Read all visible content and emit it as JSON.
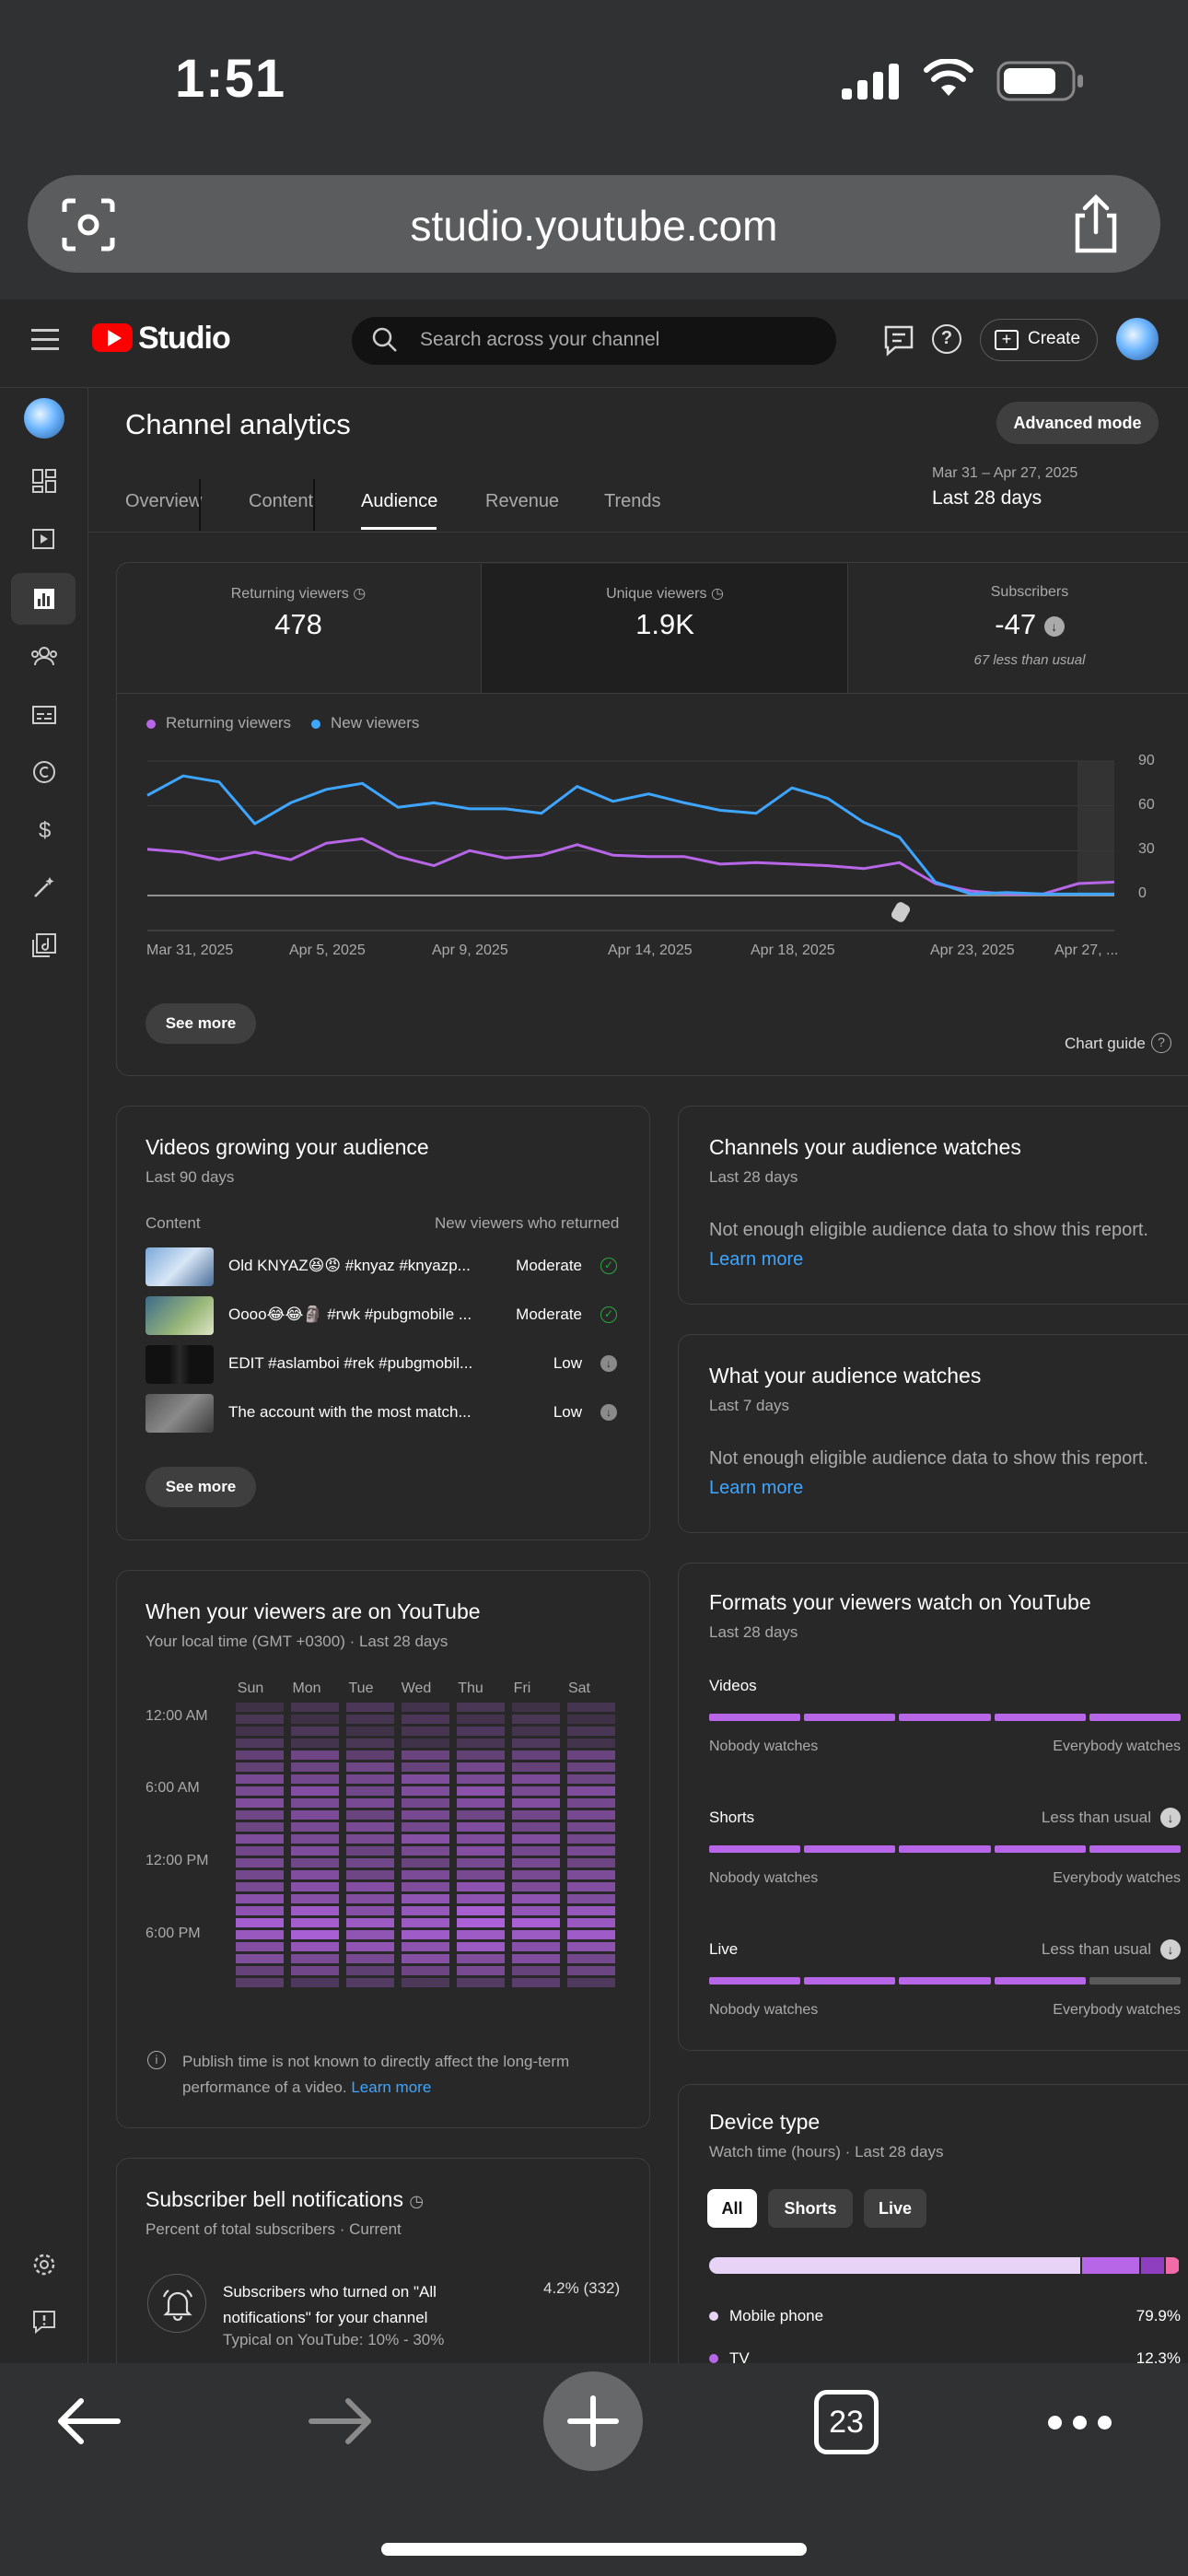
{
  "status_bar": {
    "time": "1:51"
  },
  "browser": {
    "url": "studio.youtube.com",
    "tab_count": "23"
  },
  "header": {
    "brand": "Studio",
    "search_placeholder": "Search across your channel",
    "create_label": "Create"
  },
  "page": {
    "title": "Channel analytics",
    "advanced_mode": "Advanced mode",
    "tabs": [
      "Overview",
      "Content",
      "Audience",
      "Revenue",
      "Trends"
    ],
    "active_tab": "Audience",
    "date_range_small": "Mar 31 – Apr 27, 2025",
    "date_range_main": "Last 28 days"
  },
  "metrics": [
    {
      "label": "Returning viewers",
      "value": "478"
    },
    {
      "label": "Unique viewers",
      "value": "1.9K"
    },
    {
      "label": "Subscribers",
      "value": "-47",
      "note": "67 less than usual"
    }
  ],
  "chart_data": {
    "type": "line",
    "x": [
      "Mar 31, 2025",
      "Apr 1",
      "Apr 2",
      "Apr 3",
      "Apr 4",
      "Apr 5, 2025",
      "Apr 6",
      "Apr 7",
      "Apr 8",
      "Apr 9, 2025",
      "Apr 10",
      "Apr 11",
      "Apr 12",
      "Apr 13",
      "Apr 14, 2025",
      "Apr 15",
      "Apr 16",
      "Apr 17",
      "Apr 18, 2025",
      "Apr 19",
      "Apr 20",
      "Apr 21",
      "Apr 22",
      "Apr 23, 2025",
      "Apr 24",
      "Apr 25",
      "Apr 26",
      "Apr 27, 2025"
    ],
    "x_tick_labels": [
      "Mar 31, 2025",
      "Apr 5, 2025",
      "Apr 9, 2025",
      "Apr 14, 2025",
      "Apr 18, 2025",
      "Apr 23, 2025",
      "Apr 27, ..."
    ],
    "series": [
      {
        "name": "Returning viewers",
        "color": "#b866e8",
        "values": [
          31,
          29,
          24,
          29,
          24,
          35,
          38,
          26,
          20,
          30,
          25,
          27,
          34,
          27,
          26,
          26,
          21,
          22,
          21,
          20,
          18,
          22,
          8,
          3,
          1,
          1,
          8,
          9
        ]
      },
      {
        "name": "New viewers",
        "color": "#3ea6ff",
        "values": [
          67,
          80,
          76,
          48,
          62,
          71,
          75,
          59,
          62,
          58,
          58,
          55,
          73,
          63,
          68,
          62,
          57,
          55,
          72,
          65,
          49,
          39,
          9,
          1,
          2,
          1,
          1,
          1
        ]
      }
    ],
    "ylim": [
      0,
      90
    ],
    "y_ticks": [
      "0",
      "30",
      "60",
      "90"
    ],
    "legend": "top-left"
  },
  "see_more_label": "See more",
  "chart_guide_label": "Chart guide",
  "videos_growing": {
    "title": "Videos growing your audience",
    "subtitle": "Last 90 days",
    "col_content": "Content",
    "col_new": "New viewers who returned",
    "rows": [
      {
        "title": "Old KNYAZ😆😡 #knyaz #knyazp...",
        "level": "Moderate"
      },
      {
        "title": "Oooo😂😂🗿 #rwk #pubgmobile ...",
        "level": "Moderate"
      },
      {
        "title": "EDIT #aslamboi #rek #pubgmobil...",
        "level": "Low"
      },
      {
        "title": "The account with the most match...",
        "level": "Low"
      }
    ]
  },
  "channels_watch": {
    "title": "Channels your audience watches",
    "subtitle": "Last 28 days",
    "message": "Not enough eligible audience data to show this report.",
    "learn_more": "Learn more"
  },
  "what_watch": {
    "title": "What your audience watches",
    "subtitle": "Last 7 days",
    "message": "Not enough eligible audience data to show this report.",
    "learn_more": "Learn more"
  },
  "when_viewers": {
    "title": "When your viewers are on YouTube",
    "subtitle": "Your local time (GMT +0300) · Last 28 days",
    "days": [
      "Sun",
      "Mon",
      "Tue",
      "Wed",
      "Thu",
      "Fri",
      "Sat"
    ],
    "times": [
      "12:00 AM",
      "6:00 AM",
      "12:00 PM",
      "6:00 PM"
    ],
    "note": "Publish time is not known to directly affect the long-term performance of a video.",
    "learn_more": "Learn more"
  },
  "formats": {
    "title": "Formats your viewers watch on YouTube",
    "subtitle": "Last 28 days",
    "scale_low": "Nobody watches",
    "scale_high": "Everybody watches",
    "items": [
      {
        "label": "Videos",
        "note": "",
        "level": 5
      },
      {
        "label": "Shorts",
        "note": "Less than usual",
        "level": 5
      },
      {
        "label": "Live",
        "note": "Less than usual",
        "level": 4
      }
    ]
  },
  "bell": {
    "title": "Subscriber bell notifications",
    "subtitle": "Percent of total subscribers · Current",
    "line": "Subscribers who turned on \"All notifications\" for your channel",
    "typical": "Typical on YouTube: 10% - 30%",
    "value": "4.2% (332)"
  },
  "device": {
    "title": "Device type",
    "subtitle": "Watch time (hours) · Last 28 days",
    "chips": [
      "All",
      "Shorts",
      "Live"
    ],
    "items": [
      {
        "name": "Mobile phone",
        "pct": "79.9%",
        "share": 79.9,
        "color": "#e6d3f5"
      },
      {
        "name": "TV",
        "pct": "12.3%",
        "share": 12.3,
        "color": "#b866e8"
      }
    ],
    "other_shares": [
      5.0,
      2.8
    ],
    "other_colors": [
      "#8e3fbf",
      "#f06ba8"
    ]
  },
  "colors": {
    "accent_purple": "#b866e8",
    "accent_blue": "#3ea6ff",
    "yt_red": "#ff0000"
  }
}
